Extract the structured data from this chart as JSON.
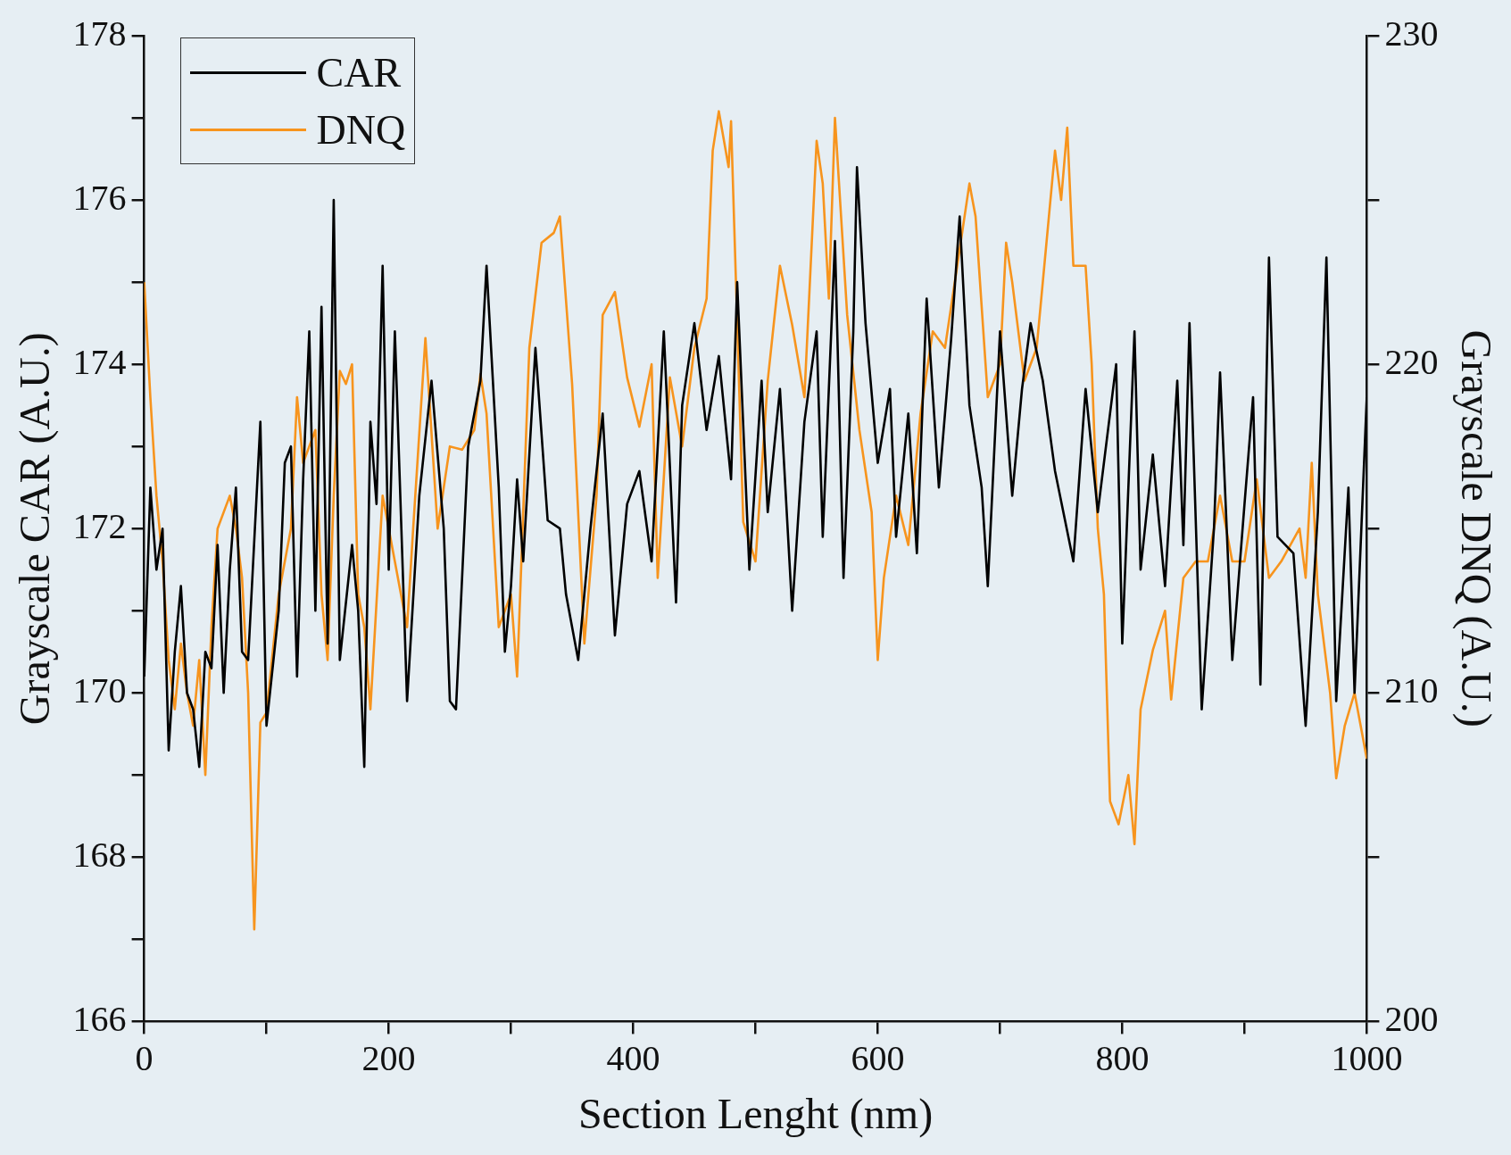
{
  "chart_data": {
    "type": "line",
    "xlabel": "Section Lenght (nm)",
    "ylabel": "Grayscale CAR (A.U.)",
    "y2label": "Grayscale DNQ (A.U.)",
    "xlim": [
      0,
      1000
    ],
    "xticks": [
      0,
      {
        "value": 100,
        "label": null
      },
      200,
      {
        "value": 300,
        "label": null
      },
      400,
      {
        "value": 500,
        "label": null
      },
      600,
      {
        "value": 700,
        "label": null
      },
      800,
      {
        "value": 900,
        "label": null
      },
      1000
    ],
    "ylim": [
      166,
      178
    ],
    "yticks": [
      166,
      {
        "value": 167,
        "label": null
      },
      168,
      {
        "value": 169,
        "label": null
      },
      170,
      {
        "value": 171,
        "label": null
      },
      172,
      {
        "value": 173,
        "label": null
      },
      174,
      {
        "value": 175,
        "label": null
      },
      176,
      {
        "value": 177,
        "label": null
      },
      178
    ],
    "y2lim": [
      200,
      230
    ],
    "y2ticks": [
      200,
      {
        "value": 205,
        "label": null
      },
      210,
      {
        "value": 215,
        "label": null
      },
      220,
      {
        "value": 225,
        "label": null
      },
      230
    ],
    "legend": "top left",
    "grid": false,
    "marker": "none",
    "line_style": "solid",
    "series": [
      {
        "name": "CAR",
        "color": "#000000",
        "x": [
          0,
          5,
          10,
          15,
          20,
          25,
          30,
          35,
          40,
          45,
          50,
          55,
          60,
          65,
          70,
          75,
          80,
          85,
          95,
          100,
          110,
          115,
          120,
          125,
          130,
          135,
          140,
          145,
          150,
          155,
          160,
          170,
          175,
          180,
          185,
          190,
          195,
          200,
          205,
          215,
          225,
          235,
          245,
          250,
          255,
          265,
          275,
          280,
          290,
          295,
          300,
          305,
          310,
          320,
          330,
          340,
          345,
          355,
          365,
          375,
          385,
          395,
          405,
          415,
          425,
          435,
          440,
          450,
          460,
          470,
          480,
          485,
          495,
          505,
          510,
          520,
          530,
          540,
          550,
          555,
          565,
          572,
          580,
          583,
          590,
          600,
          610,
          615,
          625,
          632,
          640,
          650,
          660,
          667,
          675,
          685,
          690,
          700,
          710,
          718,
          725,
          735,
          745,
          760,
          770,
          780,
          790,
          795,
          800,
          810,
          815,
          825,
          835,
          845,
          850,
          855,
          865,
          875,
          880,
          890,
          900,
          907,
          913,
          920,
          927,
          940,
          950,
          960,
          967,
          975,
          985,
          990,
          1000
        ],
        "values": [
          170.2,
          172.5,
          171.5,
          172,
          169.3,
          170.5,
          171.3,
          170,
          169.8,
          169.1,
          170.5,
          170.3,
          171.8,
          170,
          171.5,
          172.5,
          170.5,
          170.4,
          173.3,
          169.6,
          171,
          172.8,
          173,
          170.2,
          172.6,
          174.4,
          171,
          174.7,
          170.6,
          176,
          170.4,
          171.8,
          171,
          169.1,
          173.3,
          172.3,
          175.2,
          171.5,
          174.4,
          169.9,
          172.4,
          173.8,
          172,
          169.9,
          169.8,
          173,
          173.8,
          175.2,
          172.5,
          170.5,
          171.3,
          172.6,
          171.6,
          174.2,
          172.1,
          172,
          171.2,
          170.4,
          172,
          173.4,
          170.7,
          172.3,
          172.7,
          171.6,
          174.4,
          171.1,
          173.5,
          174.5,
          173.2,
          174.1,
          172.6,
          175,
          171.5,
          173.8,
          172.2,
          173.7,
          171,
          173.3,
          174.4,
          171.9,
          175.5,
          171.4,
          174.4,
          176.4,
          174.5,
          172.8,
          173.7,
          171.9,
          173.4,
          171.7,
          174.8,
          172.5,
          174.3,
          175.8,
          173.5,
          172.5,
          171.3,
          174.4,
          172.4,
          173.7,
          174.5,
          173.8,
          172.7,
          171.6,
          173.7,
          172.2,
          173.4,
          174,
          170.6,
          174.4,
          171.5,
          172.9,
          171.3,
          173.8,
          171.8,
          174.5,
          169.8,
          172,
          173.9,
          170.4,
          172.3,
          173.6,
          170.1,
          175.3,
          171.9,
          171.7,
          169.6,
          172.2,
          175.3,
          169.9,
          172.5,
          170,
          173.6
        ]
      },
      {
        "name": "DNQ",
        "color": "#f7941d",
        "axis": "y2",
        "x": [
          0,
          5,
          10,
          15,
          20,
          25,
          30,
          35,
          40,
          45,
          50,
          55,
          60,
          70,
          75,
          80,
          85,
          90,
          95,
          100,
          110,
          120,
          125,
          130,
          135,
          140,
          145,
          150,
          155,
          160,
          165,
          170,
          175,
          180,
          185,
          195,
          205,
          215,
          220,
          230,
          240,
          250,
          260,
          270,
          275,
          280,
          290,
          300,
          305,
          315,
          325,
          335,
          340,
          350,
          360,
          370,
          375,
          385,
          395,
          405,
          415,
          420,
          430,
          440,
          450,
          460,
          465,
          470,
          478,
          480,
          490,
          500,
          510,
          520,
          530,
          540,
          550,
          555,
          560,
          565,
          575,
          585,
          595,
          600,
          605,
          615,
          625,
          635,
          645,
          655,
          665,
          675,
          680,
          690,
          700,
          705,
          710,
          720,
          730,
          745,
          750,
          755,
          760,
          770,
          775,
          780,
          785,
          790,
          797,
          805,
          810,
          815,
          825,
          835,
          840,
          850,
          860,
          870,
          880,
          890,
          900,
          910,
          920,
          930,
          945,
          950,
          955,
          960,
          970,
          975,
          982,
          990,
          1000
        ],
        "values": [
          222.5,
          219,
          216,
          214,
          211,
          209.5,
          211.5,
          210,
          209,
          211,
          207.5,
          212,
          215,
          216,
          215,
          213.5,
          210,
          202.8,
          209.1,
          209.4,
          213,
          215,
          219,
          217,
          217.5,
          218,
          213,
          211,
          216,
          219.8,
          219.4,
          220,
          213,
          212,
          209.5,
          216,
          214,
          212,
          215,
          220.8,
          215,
          217.5,
          217.4,
          218,
          219.7,
          218.5,
          212,
          213,
          210.5,
          220.5,
          223.7,
          224,
          224.5,
          219.4,
          211.5,
          216,
          221.5,
          222.2,
          219.6,
          218.1,
          220,
          213.5,
          219.6,
          217.5,
          220.5,
          222,
          226.5,
          227.7,
          226,
          227.4,
          215.2,
          214,
          219.5,
          223,
          221.2,
          219,
          226.8,
          225.5,
          222,
          227.5,
          221.5,
          218,
          215.5,
          211,
          213.5,
          216,
          214.5,
          218.5,
          221,
          220.5,
          223,
          225.5,
          224.5,
          219,
          220,
          223.7,
          222.5,
          219.5,
          220.5,
          226.5,
          225,
          227.2,
          223,
          223,
          220,
          215,
          213,
          206.7,
          206,
          207.5,
          205.4,
          209.5,
          211.3,
          212.5,
          209.8,
          213.5,
          214,
          214,
          216,
          214,
          214,
          216.5,
          213.5,
          214,
          215,
          213.5,
          217,
          213,
          210,
          207.4,
          209,
          210,
          208
        ]
      }
    ]
  }
}
